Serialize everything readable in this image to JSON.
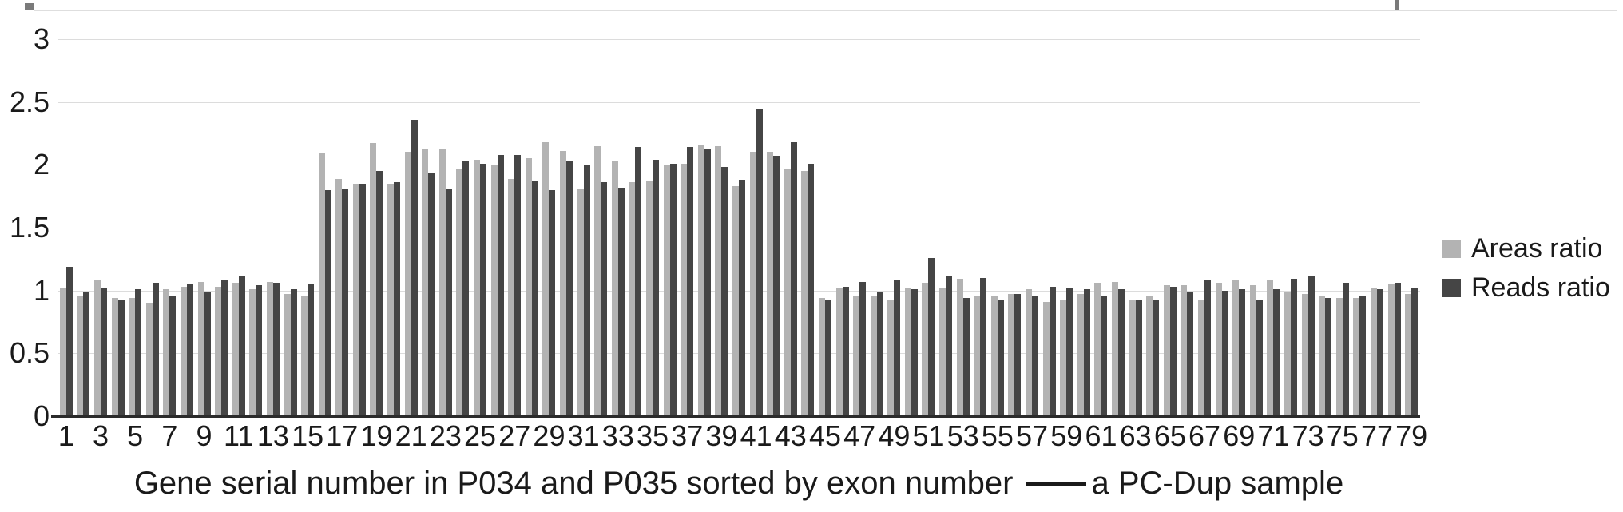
{
  "caption": {
    "before_line": "Gene serial number in P034 and P035 sorted by exon number",
    "after_line": "a PC-Dup sample"
  },
  "legend": [
    {
      "label": "Areas ratio",
      "color": "#b3b3b3"
    },
    {
      "label": "Reads ratio",
      "color": "#454545"
    }
  ],
  "colors": {
    "areas_bar": "#b3b3b3",
    "reads_bar": "#454545",
    "gridline": "#dcdcdc",
    "axis_line": "#2b2b2b",
    "text": "#1a1a1a"
  },
  "chart_data": {
    "type": "bar",
    "title": "",
    "xlabel": "Gene serial number in P034 and P035 sorted by exon number — a PC-Dup sample",
    "ylabel": "",
    "ylim": [
      0,
      3.25
    ],
    "grid": true,
    "legend_position": "right",
    "y_ticks": [
      0,
      0.5,
      1,
      1.5,
      2,
      2.5,
      3
    ],
    "x_tick_labels": [
      "1",
      "3",
      "5",
      "7",
      "9",
      "11",
      "13",
      "15",
      "17",
      "19",
      "21",
      "23",
      "25",
      "27",
      "29",
      "31",
      "33",
      "35",
      "37",
      "39",
      "41",
      "43",
      "45",
      "47",
      "49",
      "51",
      "53",
      "55",
      "57",
      "59",
      "61",
      "63",
      "65",
      "67",
      "69",
      "71",
      "73",
      "75",
      "77",
      "79"
    ],
    "categories": [
      1,
      2,
      3,
      4,
      5,
      6,
      7,
      8,
      9,
      10,
      11,
      12,
      13,
      14,
      15,
      16,
      17,
      18,
      19,
      20,
      21,
      22,
      23,
      24,
      25,
      26,
      27,
      28,
      29,
      30,
      31,
      32,
      33,
      34,
      35,
      36,
      37,
      38,
      39,
      40,
      41,
      42,
      43,
      44,
      45,
      46,
      47,
      48,
      49,
      50,
      51,
      52,
      53,
      54,
      55,
      56,
      57,
      58,
      59,
      60,
      61,
      62,
      63,
      64,
      65,
      66,
      67,
      68,
      69,
      70,
      71,
      72,
      73,
      74,
      75,
      76,
      77,
      78,
      79
    ],
    "series": [
      {
        "name": "Areas ratio",
        "color": "#b3b3b3",
        "values": [
          1.02,
          0.95,
          1.08,
          0.94,
          0.94,
          0.9,
          1.01,
          1.03,
          1.07,
          1.03,
          1.06,
          1.01,
          1.07,
          0.97,
          0.96,
          2.09,
          1.89,
          1.85,
          2.17,
          1.85,
          2.1,
          2.12,
          2.13,
          1.97,
          2.04,
          2.0,
          1.89,
          2.05,
          2.18,
          2.11,
          1.81,
          2.15,
          2.03,
          1.86,
          1.87,
          2.0,
          2.01,
          2.16,
          2.15,
          1.83,
          2.1,
          2.1,
          1.97,
          1.95,
          0.94,
          1.02,
          0.96,
          0.95,
          0.93,
          1.02,
          1.06,
          1.02,
          1.09,
          0.95,
          0.95,
          0.97,
          1.01,
          0.91,
          0.92,
          0.97,
          1.06,
          1.07,
          0.93,
          0.96,
          1.04,
          1.04,
          0.92,
          1.06,
          1.08,
          1.04,
          1.08,
          0.99,
          0.97,
          0.95,
          0.94,
          0.94,
          1.02,
          1.05,
          0.97
        ]
      },
      {
        "name": "Reads ratio",
        "color": "#454545",
        "values": [
          1.19,
          0.99,
          1.02,
          0.92,
          1.01,
          1.06,
          0.96,
          1.05,
          0.99,
          1.08,
          1.12,
          1.04,
          1.06,
          1.01,
          1.05,
          1.8,
          1.81,
          1.85,
          1.95,
          1.86,
          2.36,
          1.93,
          1.81,
          2.03,
          2.01,
          2.08,
          2.08,
          1.87,
          1.8,
          2.03,
          2.0,
          1.86,
          1.82,
          2.14,
          2.04,
          2.01,
          2.14,
          2.12,
          1.98,
          1.88,
          2.44,
          2.07,
          2.18,
          2.01,
          0.92,
          1.03,
          1.07,
          0.99,
          1.08,
          1.01,
          1.26,
          1.11,
          0.94,
          1.1,
          0.93,
          0.97,
          0.96,
          1.03,
          1.02,
          1.01,
          0.95,
          1.01,
          0.92,
          0.93,
          1.03,
          0.99,
          1.08,
          1.0,
          1.01,
          0.93,
          1.01,
          1.09,
          1.11,
          0.94,
          1.06,
          0.96,
          1.01,
          1.06,
          1.02
        ]
      }
    ]
  }
}
